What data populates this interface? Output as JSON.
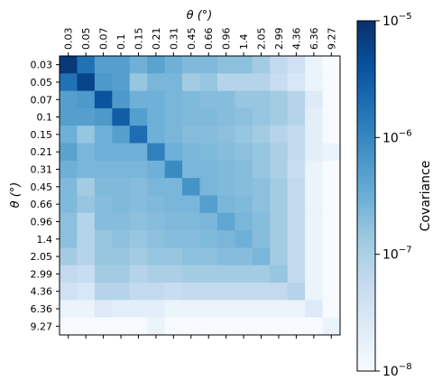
{
  "chart_data": {
    "type": "heatmap",
    "title": "",
    "xlabel": "θ (°)",
    "ylabel": "θ (°)",
    "x_categories": [
      "0.03",
      "0.05",
      "0.07",
      "0.1",
      "0.15",
      "0.21",
      "0.31",
      "0.45",
      "0.66",
      "0.96",
      "1.4",
      "2.05",
      "2.99",
      "4.36",
      "6.36",
      "9.27"
    ],
    "y_categories": [
      "0.03",
      "0.05",
      "0.07",
      "0.1",
      "0.15",
      "0.21",
      "0.31",
      "0.45",
      "0.66",
      "0.96",
      "1.4",
      "2.05",
      "2.99",
      "4.36",
      "6.36",
      "9.27"
    ],
    "colorbar": {
      "label": "Covariance",
      "scale": "log",
      "range": [
        1e-08,
        1e-05
      ],
      "tick_values": [
        1e-08,
        1e-07,
        1e-06,
        1e-05
      ],
      "tick_base": "10",
      "tick_exponents": [
        "−8",
        "−7",
        "−6",
        "−5"
      ],
      "colormap": "Blues"
    },
    "values": [
      [
        8e-06,
        1.8e-06,
        5e-07,
        5e-07,
        3e-07,
        4.5e-07,
        3e-07,
        2.2e-07,
        2.2e-07,
        1.8e-07,
        1.8e-07,
        1.2e-07,
        6e-08,
        4e-08,
        1.5e-08,
        1e-08
      ],
      [
        1.8e-06,
        6e-06,
        6e-07,
        5e-07,
        1.5e-07,
        2.5e-07,
        2.5e-07,
        1.2e-07,
        1.5e-07,
        8e-08,
        8e-08,
        8e-08,
        5e-08,
        3e-08,
        1.5e-08,
        1e-08
      ],
      [
        5e-07,
        6e-07,
        4e-06,
        6e-07,
        3e-07,
        3e-07,
        2.5e-07,
        2.2e-07,
        2e-07,
        2e-07,
        1.5e-07,
        1.5e-07,
        1.2e-07,
        8e-08,
        2.5e-08,
        1e-08
      ],
      [
        5e-07,
        5e-07,
        6e-07,
        3e-06,
        5e-07,
        3e-07,
        2.5e-07,
        2.2e-07,
        2.2e-07,
        2e-07,
        1.8e-07,
        1.5e-07,
        1.2e-07,
        8e-08,
        2e-08,
        1e-08
      ],
      [
        3e-07,
        1.5e-07,
        3e-07,
        5e-07,
        2e-06,
        3e-07,
        2.5e-07,
        2e-07,
        2e-07,
        1.8e-07,
        1.5e-07,
        1.2e-07,
        8e-08,
        6e-08,
        2e-08,
        1e-08
      ],
      [
        4.5e-07,
        2.5e-07,
        3e-07,
        3e-07,
        3e-07,
        1.2e-06,
        3e-07,
        2.5e-07,
        2.2e-07,
        2e-07,
        1.8e-07,
        1.5e-07,
        1e-07,
        6e-08,
        2e-08,
        1.5e-08
      ],
      [
        3e-07,
        2.5e-07,
        2.5e-07,
        2.5e-07,
        2.5e-07,
        3e-07,
        9e-07,
        2.5e-07,
        2.5e-07,
        2.2e-07,
        2e-07,
        1.5e-07,
        1e-07,
        5e-08,
        1.5e-08,
        1e-08
      ],
      [
        2.2e-07,
        1.2e-07,
        2.2e-07,
        2.2e-07,
        2e-07,
        2.5e-07,
        2.5e-07,
        7e-07,
        2.5e-07,
        2.2e-07,
        2e-07,
        1.8e-07,
        1.2e-07,
        6e-08,
        1.5e-08,
        1e-08
      ],
      [
        2.2e-07,
        1.5e-07,
        2e-07,
        2.2e-07,
        2e-07,
        2.2e-07,
        2.5e-07,
        2.5e-07,
        5e-07,
        2.5e-07,
        2.2e-07,
        1.8e-07,
        1.2e-07,
        6e-08,
        1.5e-08,
        1e-08
      ],
      [
        1.8e-07,
        8e-08,
        2e-07,
        2e-07,
        1.8e-07,
        2e-07,
        2.2e-07,
        2.2e-07,
        2.5e-07,
        4e-07,
        2.5e-07,
        2e-07,
        1.2e-07,
        6e-08,
        1.5e-08,
        1e-08
      ],
      [
        1.8e-07,
        8e-08,
        1.5e-07,
        1.8e-07,
        1.5e-07,
        1.8e-07,
        2e-07,
        2e-07,
        2.2e-07,
        2.5e-07,
        3e-07,
        2e-07,
        1.2e-07,
        6e-08,
        1.5e-08,
        1e-08
      ],
      [
        1.2e-07,
        8e-08,
        1.5e-07,
        1.5e-07,
        1.2e-07,
        1.5e-07,
        1.5e-07,
        1.8e-07,
        1.8e-07,
        2e-07,
        2e-07,
        2.5e-07,
        1.2e-07,
        6e-08,
        1.5e-08,
        1e-08
      ],
      [
        6e-08,
        5e-08,
        1.2e-07,
        1.2e-07,
        8e-08,
        1e-07,
        1e-07,
        1.2e-07,
        1.2e-07,
        1.2e-07,
        1.2e-07,
        1.2e-07,
        1.5e-07,
        6e-08,
        1.5e-08,
        1e-08
      ],
      [
        4e-08,
        3e-08,
        8e-08,
        8e-08,
        6e-08,
        6e-08,
        5e-08,
        6e-08,
        6e-08,
        6e-08,
        6e-08,
        6e-08,
        6e-08,
        8e-08,
        1.5e-08,
        1e-08
      ],
      [
        1.5e-08,
        1.5e-08,
        2.5e-08,
        2e-08,
        2e-08,
        2e-08,
        1.5e-08,
        1.5e-08,
        1.5e-08,
        1.5e-08,
        1.5e-08,
        1.5e-08,
        1.5e-08,
        1.5e-08,
        2.5e-08,
        1e-08
      ],
      [
        1e-08,
        1e-08,
        1e-08,
        1e-08,
        1e-08,
        1.5e-08,
        1e-08,
        1e-08,
        1e-08,
        1e-08,
        1e-08,
        1e-08,
        1e-08,
        1e-08,
        1e-08,
        1.5e-08
      ]
    ]
  }
}
